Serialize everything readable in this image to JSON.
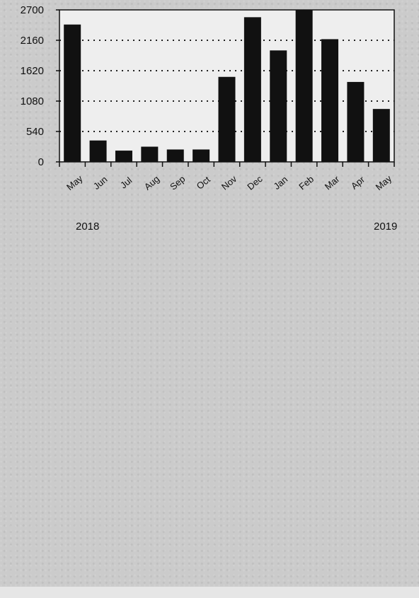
{
  "chart_data": {
    "type": "bar",
    "categories": [
      "May",
      "Jun",
      "Jul",
      "Aug",
      "Sep",
      "Oct",
      "Nov",
      "Dec",
      "Jan",
      "Feb",
      "Mar",
      "Apr",
      "May"
    ],
    "values": [
      2440,
      380,
      200,
      270,
      220,
      220,
      1510,
      2570,
      1980,
      2880,
      2180,
      1420,
      940
    ],
    "year_labels": [
      "2018",
      "2019"
    ],
    "yticks": [
      "0",
      "540",
      "1080",
      "1620",
      "2160",
      "2700"
    ],
    "ylim": [
      0,
      2700
    ],
    "title": "",
    "xlabel": "",
    "ylabel": "",
    "grid": "horizontal dotted",
    "bar_color": "#111111",
    "plot_background": "#eeeeee"
  }
}
